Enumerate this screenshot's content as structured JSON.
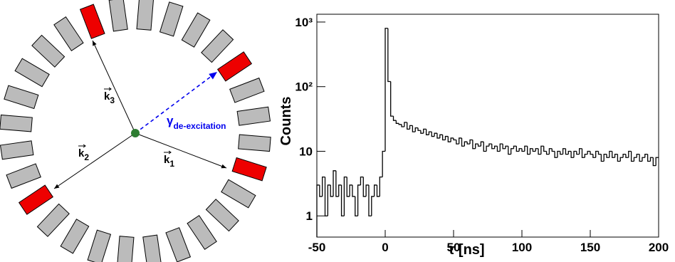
{
  "diagram": {
    "momenta": [
      {
        "symbol": "k",
        "index": "1"
      },
      {
        "symbol": "k",
        "index": "2"
      },
      {
        "symbol": "k",
        "index": "3"
      }
    ],
    "gamma": {
      "symbol": "γ",
      "index": "de-excitation"
    }
  },
  "chart_data": {
    "type": "histogram",
    "xlabel": "τ [ns]",
    "ylabel": "Counts",
    "color": "#000000",
    "log_y": true,
    "xlim": [
      -50,
      200
    ],
    "xticks": [
      -50,
      0,
      50,
      100,
      150,
      200
    ],
    "ylim": [
      0.47,
      1320
    ],
    "yticks": [
      1,
      10,
      {
        "value": 100,
        "label": "10²"
      },
      {
        "value": 1000,
        "label": "10³"
      }
    ],
    "bins": [
      -50,
      -48,
      -46,
      -44,
      -42,
      -40,
      -38,
      -36,
      -34,
      -32,
      -30,
      -28,
      -26,
      -24,
      -22,
      -20,
      -18,
      -16,
      -14,
      -12,
      -10,
      -8,
      -6,
      -4,
      -2,
      0,
      2,
      4,
      6,
      8,
      10,
      12,
      14,
      16,
      18,
      20,
      22,
      24,
      26,
      28,
      30,
      32,
      34,
      36,
      38,
      40,
      42,
      44,
      46,
      48,
      50,
      52,
      54,
      56,
      58,
      60,
      62,
      64,
      66,
      68,
      70,
      72,
      74,
      76,
      78,
      80,
      82,
      84,
      86,
      88,
      90,
      92,
      94,
      96,
      98,
      100,
      102,
      104,
      106,
      108,
      110,
      112,
      114,
      116,
      118,
      120,
      122,
      124,
      126,
      128,
      130,
      132,
      134,
      136,
      138,
      140,
      142,
      144,
      146,
      148,
      150,
      152,
      154,
      156,
      158,
      160,
      162,
      164,
      166,
      168,
      170,
      172,
      174,
      176,
      178,
      180,
      182,
      184,
      186,
      188,
      190,
      192,
      194,
      196,
      198,
      200
    ],
    "values": [
      3,
      2,
      4,
      1,
      3,
      2,
      5,
      2,
      3,
      1,
      4,
      2,
      3,
      2,
      1,
      3,
      4,
      2,
      3,
      1,
      2,
      3,
      2,
      4,
      10,
      800,
      120,
      35,
      30,
      27,
      26,
      24,
      28,
      22,
      25,
      20,
      23,
      21,
      19,
      22,
      18,
      20,
      17,
      19,
      16,
      18,
      15,
      17,
      14,
      16,
      15,
      13,
      16,
      12,
      14,
      13,
      15,
      11,
      13,
      12,
      14,
      10,
      12,
      13,
      11,
      12,
      10,
      13,
      11,
      12,
      9,
      11,
      12,
      10,
      11,
      10,
      12,
      9,
      11,
      10,
      11,
      9,
      12,
      10,
      9,
      11,
      10,
      8,
      10,
      9,
      11,
      9,
      10,
      8,
      10,
      9,
      11,
      8,
      9,
      10,
      9,
      8,
      10,
      9,
      7,
      9,
      8,
      10,
      8,
      9,
      7,
      8,
      9,
      8,
      10,
      7,
      8,
      9,
      7,
      8,
      9,
      7,
      8,
      6,
      8
    ]
  }
}
